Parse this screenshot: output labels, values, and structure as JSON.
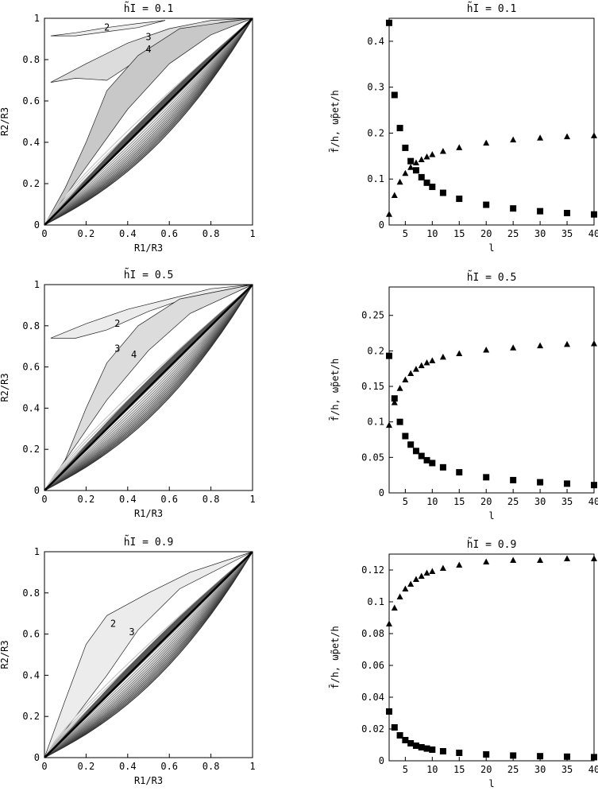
{
  "chart_data": [
    {
      "type": "line",
      "title": "h̃I = 0.1",
      "xlabel": "R1/R3",
      "ylabel": "R2/R3",
      "xlim": [
        0,
        1
      ],
      "ylim": [
        0,
        1
      ],
      "xticks": [
        "0",
        "0.2",
        "0.4",
        "0.6",
        "0.8",
        "1"
      ],
      "yticks": [
        "0",
        "0.2",
        "0.4",
        "0.6",
        "0.8",
        "1"
      ],
      "grid": false,
      "curve_labels": [
        {
          "text": "2",
          "x": 0.3,
          "y": 0.955
        },
        {
          "text": "3",
          "x": 0.5,
          "y": 0.91
        },
        {
          "text": "4",
          "x": 0.5,
          "y": 0.85
        }
      ],
      "regions": [
        {
          "name": "2",
          "upper": [
            [
              0.03,
              0.915
            ],
            [
              0.15,
              0.93
            ],
            [
              0.3,
              0.955
            ],
            [
              0.45,
              0.975
            ],
            [
              0.58,
              0.99
            ]
          ],
          "lower": [
            [
              0.03,
              0.915
            ],
            [
              0.15,
              0.915
            ],
            [
              0.3,
              0.935
            ],
            [
              0.45,
              0.955
            ],
            [
              0.58,
              0.99
            ]
          ]
        },
        {
          "name": "3",
          "upper": [
            [
              0.03,
              0.69
            ],
            [
              0.2,
              0.78
            ],
            [
              0.4,
              0.88
            ],
            [
              0.6,
              0.95
            ],
            [
              0.8,
              0.99
            ],
            [
              1.0,
              1.0
            ]
          ],
          "lower": [
            [
              0.03,
              0.69
            ],
            [
              0.15,
              0.71
            ],
            [
              0.3,
              0.7
            ],
            [
              0.45,
              0.8
            ],
            [
              0.65,
              0.93
            ],
            [
              0.85,
              0.98
            ],
            [
              1.0,
              1.0
            ]
          ]
        },
        {
          "name": "4",
          "upper": [
            [
              0,
              0
            ],
            [
              0.1,
              0.18
            ],
            [
              0.2,
              0.4
            ],
            [
              0.3,
              0.65
            ],
            [
              0.45,
              0.82
            ],
            [
              0.65,
              0.95
            ],
            [
              1.0,
              1.0
            ]
          ],
          "lower": [
            [
              0,
              0
            ],
            [
              0.2,
              0.28
            ],
            [
              0.4,
              0.56
            ],
            [
              0.6,
              0.78
            ],
            [
              0.8,
              0.92
            ],
            [
              1.0,
              1.0
            ]
          ]
        }
      ]
    },
    {
      "type": "scatter",
      "title": "h̃I = 0.1",
      "xlabel": "l",
      "ylabel": "f̄/h, ω̃pet/h",
      "xlim": [
        2,
        40
      ],
      "ylim": [
        0,
        0.45
      ],
      "xticks": [
        5,
        10,
        15,
        20,
        25,
        30,
        35,
        40
      ],
      "yticks": [
        0,
        0.1,
        0.2,
        0.3,
        0.4
      ],
      "grid": false,
      "series": [
        {
          "marker": "square",
          "x": [
            2,
            3,
            4,
            5,
            6,
            7,
            8,
            9,
            10,
            12,
            15,
            20,
            25,
            30,
            35,
            40
          ],
          "values": [
            0.44,
            0.283,
            0.211,
            0.168,
            0.139,
            0.119,
            0.104,
            0.092,
            0.083,
            0.07,
            0.057,
            0.044,
            0.036,
            0.03,
            0.026,
            0.023
          ]
        },
        {
          "marker": "triangle",
          "x": [
            2,
            3,
            4,
            5,
            6,
            7,
            8,
            9,
            10,
            12,
            15,
            20,
            25,
            30,
            35,
            40
          ],
          "values": [
            0.023,
            0.064,
            0.093,
            0.112,
            0.125,
            0.135,
            0.142,
            0.148,
            0.153,
            0.16,
            0.168,
            0.178,
            0.185,
            0.189,
            0.192,
            0.194
          ]
        }
      ]
    },
    {
      "type": "line",
      "title": "h̃I = 0.5",
      "xlabel": "R1/R3",
      "ylabel": "R2/R3",
      "xlim": [
        0,
        1
      ],
      "ylim": [
        0,
        1
      ],
      "xticks": [
        "0",
        "0.2",
        "0.4",
        "0.6",
        "0.8",
        "1"
      ],
      "yticks": [
        "0",
        "0.2",
        "0.4",
        "0.6",
        "0.8",
        "1"
      ],
      "grid": false,
      "curve_labels": [
        {
          "text": "2",
          "x": 0.35,
          "y": 0.81
        },
        {
          "text": "3",
          "x": 0.35,
          "y": 0.69
        },
        {
          "text": "4",
          "x": 0.43,
          "y": 0.66
        }
      ],
      "regions": [
        {
          "name": "2",
          "upper": [
            [
              0.03,
              0.74
            ],
            [
              0.2,
              0.81
            ],
            [
              0.4,
              0.88
            ],
            [
              0.6,
              0.93
            ],
            [
              0.8,
              0.98
            ],
            [
              1.0,
              1.0
            ]
          ],
          "lower": [
            [
              0.03,
              0.74
            ],
            [
              0.15,
              0.74
            ],
            [
              0.3,
              0.78
            ],
            [
              0.5,
              0.87
            ],
            [
              0.7,
              0.94
            ],
            [
              1.0,
              1.0
            ]
          ]
        },
        {
          "name": "3",
          "upper": [
            [
              0,
              0
            ],
            [
              0.1,
              0.15
            ],
            [
              0.2,
              0.4
            ],
            [
              0.3,
              0.62
            ],
            [
              0.45,
              0.8
            ],
            [
              0.65,
              0.93
            ],
            [
              1.0,
              1.0
            ]
          ],
          "lower": [
            [
              0,
              0
            ],
            [
              0.15,
              0.22
            ],
            [
              0.3,
              0.44
            ],
            [
              0.5,
              0.68
            ],
            [
              0.7,
              0.86
            ],
            [
              1.0,
              1.0
            ]
          ]
        }
      ]
    },
    {
      "type": "scatter",
      "title": "h̃I = 0.5",
      "xlabel": "l",
      "ylabel": "f̄/h, ω̃pet/h",
      "xlim": [
        2,
        40
      ],
      "ylim": [
        0,
        0.29
      ],
      "xticks": [
        5,
        10,
        15,
        20,
        25,
        30,
        35,
        40
      ],
      "yticks": [
        0,
        0.05,
        0.1,
        0.15,
        0.2,
        0.25
      ],
      "grid": false,
      "series": [
        {
          "marker": "square",
          "x": [
            2,
            3,
            4,
            5,
            6,
            7,
            8,
            9,
            10,
            12,
            15,
            20,
            25,
            30,
            35,
            40
          ],
          "values": [
            0.193,
            0.133,
            0.1,
            0.08,
            0.068,
            0.059,
            0.052,
            0.046,
            0.042,
            0.036,
            0.029,
            0.022,
            0.018,
            0.015,
            0.013,
            0.011
          ]
        },
        {
          "marker": "triangle",
          "x": [
            2,
            3,
            4,
            5,
            6,
            7,
            8,
            9,
            10,
            12,
            15,
            20,
            25,
            30,
            35,
            40
          ],
          "values": [
            0.095,
            0.127,
            0.147,
            0.159,
            0.168,
            0.174,
            0.179,
            0.183,
            0.186,
            0.191,
            0.196,
            0.201,
            0.204,
            0.207,
            0.209,
            0.21
          ]
        }
      ]
    },
    {
      "type": "line",
      "title": "h̃I = 0.9",
      "xlabel": "R1/R3",
      "ylabel": "R2/R3",
      "xlim": [
        0,
        1
      ],
      "ylim": [
        0,
        1
      ],
      "xticks": [
        "0",
        "0.2",
        "0.4",
        "0.6",
        "0.8",
        "1"
      ],
      "yticks": [
        "0",
        "0.2",
        "0.4",
        "0.6",
        "0.8",
        "1"
      ],
      "grid": false,
      "curve_labels": [
        {
          "text": "2",
          "x": 0.33,
          "y": 0.65
        },
        {
          "text": "3",
          "x": 0.42,
          "y": 0.61
        }
      ],
      "regions": [
        {
          "name": "2",
          "upper": [
            [
              0,
              0
            ],
            [
              0.1,
              0.28
            ],
            [
              0.2,
              0.55
            ],
            [
              0.3,
              0.69
            ],
            [
              0.5,
              0.8
            ],
            [
              0.7,
              0.9
            ],
            [
              1.0,
              1.0
            ]
          ],
          "lower": [
            [
              0,
              0
            ],
            [
              0.15,
              0.2
            ],
            [
              0.3,
              0.4
            ],
            [
              0.45,
              0.62
            ],
            [
              0.65,
              0.82
            ],
            [
              1.0,
              1.0
            ]
          ]
        }
      ]
    },
    {
      "type": "scatter",
      "title": "h̃I = 0.9",
      "xlabel": "l",
      "ylabel": "f̄/h, ω̃pet/h",
      "xlim": [
        2,
        40
      ],
      "ylim": [
        0,
        0.13
      ],
      "xticks": [
        5,
        10,
        15,
        20,
        25,
        30,
        35,
        40
      ],
      "yticks": [
        0,
        0.02,
        0.04,
        0.06,
        0.08,
        0.1,
        0.12
      ],
      "grid": false,
      "series": [
        {
          "marker": "square",
          "x": [
            2,
            3,
            4,
            5,
            6,
            7,
            8,
            9,
            10,
            12,
            15,
            20,
            25,
            30,
            35,
            40
          ],
          "values": [
            0.031,
            0.021,
            0.016,
            0.013,
            0.011,
            0.0095,
            0.0085,
            0.0077,
            0.007,
            0.006,
            0.005,
            0.004,
            0.0033,
            0.0029,
            0.0026,
            0.0023
          ]
        },
        {
          "marker": "triangle",
          "x": [
            2,
            3,
            4,
            5,
            6,
            7,
            8,
            9,
            10,
            12,
            15,
            20,
            25,
            30,
            35,
            40
          ],
          "values": [
            0.086,
            0.096,
            0.103,
            0.108,
            0.111,
            0.114,
            0.116,
            0.118,
            0.119,
            0.121,
            0.123,
            0.125,
            0.126,
            0.126,
            0.127,
            0.127
          ]
        }
      ]
    }
  ]
}
